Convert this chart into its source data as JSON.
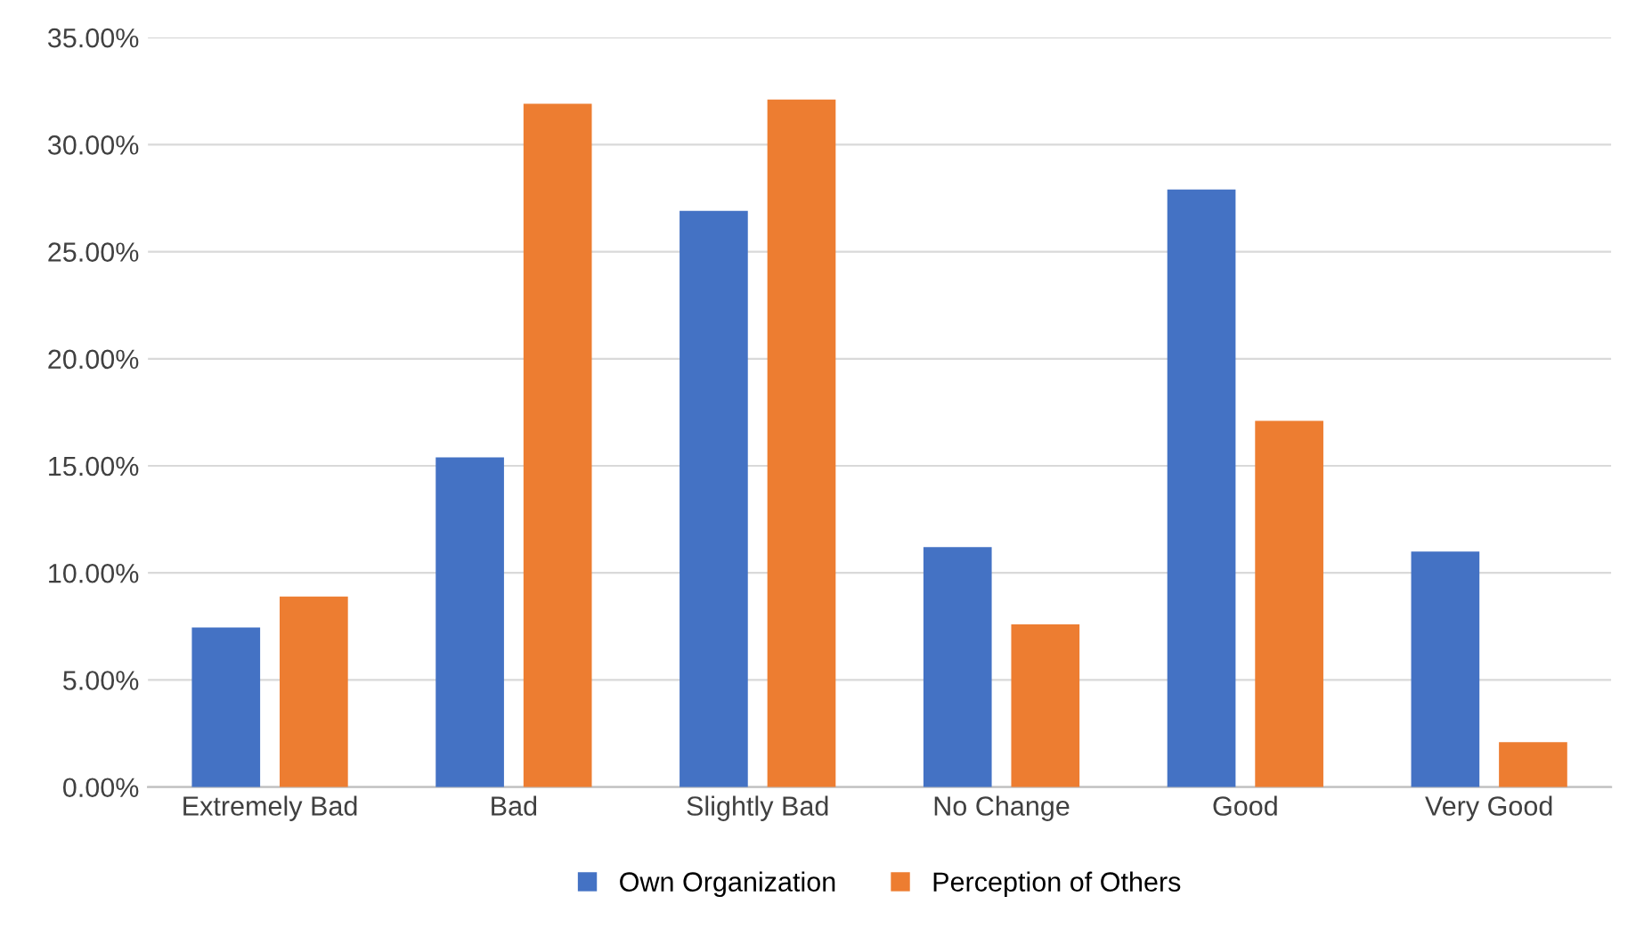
{
  "chart_data": {
    "type": "bar",
    "categories": [
      "Extremely Bad",
      "Bad",
      "Slightly Bad",
      "No Change",
      "Good",
      "Very Good"
    ],
    "series": [
      {
        "name": "Own Organization",
        "color": "#4472c4",
        "values": [
          7.45,
          15.4,
          26.9,
          11.2,
          27.9,
          11.0
        ]
      },
      {
        "name": "Perception of Others",
        "color": "#ed7d31",
        "values": [
          8.9,
          31.9,
          32.1,
          7.6,
          17.1,
          2.1
        ]
      }
    ],
    "ylim": [
      0,
      35
    ],
    "yticks": [
      {
        "value": 0,
        "label": "0.00%"
      },
      {
        "value": 5,
        "label": "5.00%"
      },
      {
        "value": 10,
        "label": "10.00%"
      },
      {
        "value": 15,
        "label": "15.00%"
      },
      {
        "value": 20,
        "label": "20.00%"
      },
      {
        "value": 25,
        "label": "25.00%"
      },
      {
        "value": 30,
        "label": "30.00%"
      },
      {
        "value": 35,
        "label": "35.00%"
      }
    ],
    "grid": "y",
    "legend": "bottom"
  }
}
